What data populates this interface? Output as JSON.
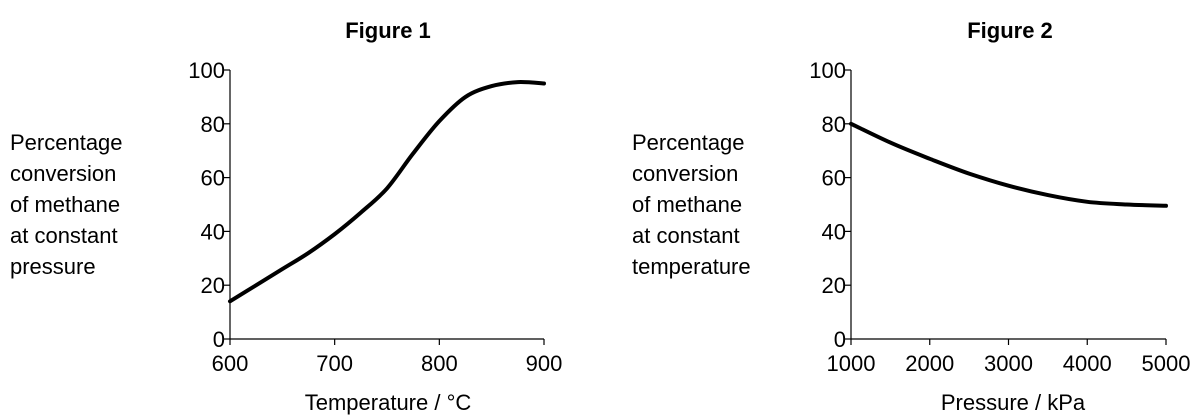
{
  "chart_data": [
    {
      "type": "line",
      "title": "Figure 1",
      "xlabel": "Temperature / °C",
      "ylabel_lines": [
        "Percentage",
        "conversion",
        "of methane",
        "at constant",
        "pressure"
      ],
      "xlim": [
        600,
        900
      ],
      "ylim": [
        0,
        100
      ],
      "xticks": [
        "600",
        "700",
        "800",
        "900"
      ],
      "yticks": [
        "0",
        "20",
        "40",
        "60",
        "80",
        "100"
      ],
      "grid": false,
      "series": [
        {
          "x": [
            600,
            625,
            650,
            675,
            700,
            725,
            750,
            775,
            800,
            825,
            850,
            875,
            900
          ],
          "y": [
            14,
            20,
            26,
            32,
            39,
            47,
            56,
            69,
            81,
            90,
            94,
            95.5,
            95
          ]
        }
      ]
    },
    {
      "type": "line",
      "title": "Figure 2",
      "xlabel": "Pressure / kPa",
      "ylabel_lines": [
        "Percentage",
        "conversion",
        "of methane",
        "at constant",
        "temperature"
      ],
      "xlim": [
        1000,
        5000
      ],
      "ylim": [
        0,
        100
      ],
      "xticks": [
        "1000",
        "2000",
        "3000",
        "4000",
        "5000"
      ],
      "yticks": [
        "0",
        "20",
        "40",
        "60",
        "80",
        "100"
      ],
      "grid": false,
      "series": [
        {
          "x": [
            1000,
            1500,
            2000,
            2500,
            3000,
            3500,
            4000,
            4500,
            5000
          ],
          "y": [
            80,
            73,
            67,
            61.5,
            57,
            53.5,
            51,
            50,
            49.5
          ]
        }
      ]
    }
  ]
}
